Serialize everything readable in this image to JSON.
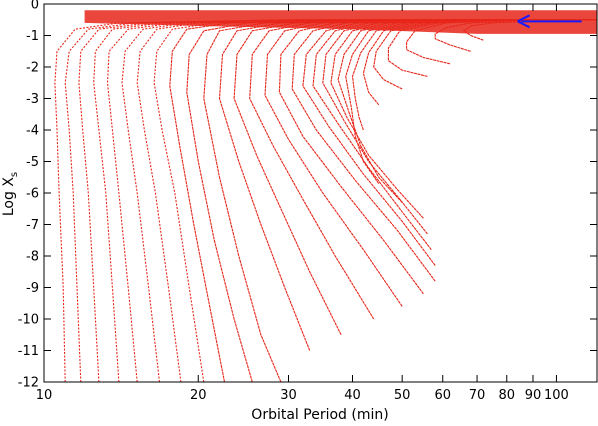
{
  "chart_data": {
    "type": "line",
    "title": "",
    "xlabel": "Orbital Period (min)",
    "ylabel_main": "Log X",
    "ylabel_sub": "s",
    "x_scale": "log",
    "xlim": [
      10,
      120
    ],
    "ylim": [
      -12,
      0
    ],
    "x_ticks": [
      {
        "value": 10,
        "label": "10"
      },
      {
        "value": 20,
        "label": "20"
      },
      {
        "value": 30,
        "label": "30"
      },
      {
        "value": 40,
        "label": "40"
      },
      {
        "value": 50,
        "label": "50"
      },
      {
        "value": 60,
        "label": "60"
      },
      {
        "value": 70,
        "label": "70"
      },
      {
        "value": 80,
        "label": "80"
      },
      {
        "value": 90,
        "label": "90"
      },
      {
        "value": 100,
        "label": "100"
      }
    ],
    "y_ticks": [
      0,
      -1,
      -2,
      -3,
      -4,
      -5,
      -6,
      -7,
      -8,
      -9,
      -10,
      -11,
      -12
    ],
    "grid": false,
    "legend": "none",
    "series_color": "#e8261a",
    "arrow_color": "#1a1aff",
    "arrow": {
      "x_from": 112,
      "x_to": 84,
      "y": -0.55
    },
    "series": [
      {
        "points": [
          [
            11.0,
            -12.0
          ],
          [
            10.9,
            -9.0
          ],
          [
            10.7,
            -6.0
          ],
          [
            10.6,
            -4.0
          ],
          [
            10.5,
            -2.5
          ],
          [
            10.6,
            -1.5
          ],
          [
            11.5,
            -0.8
          ],
          [
            14.0,
            -0.6
          ],
          [
            30.0,
            -0.5
          ],
          [
            120,
            -0.5
          ]
        ]
      },
      {
        "points": [
          [
            11.8,
            -12.0
          ],
          [
            11.6,
            -9.0
          ],
          [
            11.4,
            -6.0
          ],
          [
            11.2,
            -4.0
          ],
          [
            11.0,
            -2.5
          ],
          [
            11.2,
            -1.5
          ],
          [
            12.2,
            -0.8
          ],
          [
            15.0,
            -0.6
          ],
          [
            30.0,
            -0.5
          ],
          [
            120,
            -0.5
          ]
        ]
      },
      {
        "points": [
          [
            12.8,
            -12.0
          ],
          [
            12.5,
            -9.0
          ],
          [
            12.2,
            -6.0
          ],
          [
            11.9,
            -4.0
          ],
          [
            11.7,
            -2.5
          ],
          [
            11.8,
            -1.5
          ],
          [
            12.8,
            -0.8
          ],
          [
            16.0,
            -0.6
          ],
          [
            32.0,
            -0.5
          ],
          [
            120,
            -0.5
          ]
        ]
      },
      {
        "points": [
          [
            14.0,
            -12.0
          ],
          [
            13.6,
            -9.0
          ],
          [
            13.2,
            -6.0
          ],
          [
            12.8,
            -4.0
          ],
          [
            12.5,
            -2.5
          ],
          [
            12.6,
            -1.5
          ],
          [
            13.6,
            -0.8
          ],
          [
            17.0,
            -0.6
          ],
          [
            34.0,
            -0.5
          ],
          [
            120,
            -0.5
          ]
        ]
      },
      {
        "points": [
          [
            15.2,
            -12.0
          ],
          [
            14.6,
            -9.0
          ],
          [
            14.0,
            -6.0
          ],
          [
            13.6,
            -4.0
          ],
          [
            13.3,
            -2.5
          ],
          [
            13.4,
            -1.5
          ],
          [
            14.6,
            -0.8
          ],
          [
            18.0,
            -0.6
          ],
          [
            36.0,
            -0.5
          ],
          [
            120,
            -0.5
          ]
        ]
      },
      {
        "points": [
          [
            16.8,
            -12.0
          ],
          [
            16.0,
            -9.0
          ],
          [
            15.2,
            -6.0
          ],
          [
            14.6,
            -4.0
          ],
          [
            14.2,
            -2.5
          ],
          [
            14.4,
            -1.5
          ],
          [
            15.6,
            -0.8
          ],
          [
            19.0,
            -0.6
          ],
          [
            38.0,
            -0.5
          ],
          [
            120,
            -0.5
          ]
        ]
      },
      {
        "points": [
          [
            18.5,
            -12.0
          ],
          [
            17.5,
            -9.0
          ],
          [
            16.5,
            -6.0
          ],
          [
            15.7,
            -4.0
          ],
          [
            15.2,
            -2.5
          ],
          [
            15.4,
            -1.5
          ],
          [
            16.6,
            -0.8
          ],
          [
            20.0,
            -0.6
          ],
          [
            40.0,
            -0.5
          ],
          [
            120,
            -0.5
          ]
        ]
      },
      {
        "points": [
          [
            20.5,
            -12.0
          ],
          [
            19.2,
            -9.0
          ],
          [
            18.0,
            -6.0
          ],
          [
            17.0,
            -4.0
          ],
          [
            16.4,
            -2.5
          ],
          [
            16.6,
            -1.5
          ],
          [
            17.8,
            -0.8
          ],
          [
            21.5,
            -0.6
          ],
          [
            42.0,
            -0.5
          ],
          [
            120,
            -0.5
          ]
        ]
      },
      {
        "points": [
          [
            22.5,
            -12.0
          ],
          [
            21.0,
            -9.5
          ],
          [
            19.6,
            -7.0
          ],
          [
            18.4,
            -4.5
          ],
          [
            17.6,
            -2.6
          ],
          [
            17.8,
            -1.5
          ],
          [
            19.0,
            -0.8
          ],
          [
            23.0,
            -0.6
          ],
          [
            44.0,
            -0.5
          ],
          [
            120,
            -0.5
          ]
        ]
      },
      {
        "points": [
          [
            25.5,
            -12.0
          ],
          [
            23.5,
            -10.0
          ],
          [
            21.5,
            -7.5
          ],
          [
            20.0,
            -5.0
          ],
          [
            19.0,
            -2.8
          ],
          [
            19.2,
            -1.6
          ],
          [
            20.5,
            -0.85
          ],
          [
            25.0,
            -0.6
          ],
          [
            46.0,
            -0.5
          ],
          [
            120,
            -0.5
          ]
        ]
      },
      {
        "points": [
          [
            29.0,
            -12.0
          ],
          [
            26.5,
            -10.5
          ],
          [
            24.0,
            -8.0
          ],
          [
            22.0,
            -5.5
          ],
          [
            20.5,
            -3.0
          ],
          [
            20.8,
            -1.6
          ],
          [
            22.0,
            -0.85
          ],
          [
            27.0,
            -0.6
          ],
          [
            48.0,
            -0.5
          ],
          [
            120,
            -0.5
          ]
        ]
      },
      {
        "points": [
          [
            33.0,
            -11.0
          ],
          [
            29.5,
            -9.0
          ],
          [
            26.5,
            -7.0
          ],
          [
            24.0,
            -5.0
          ],
          [
            22.0,
            -3.0
          ],
          [
            22.3,
            -1.6
          ],
          [
            23.8,
            -0.85
          ],
          [
            29.0,
            -0.6
          ],
          [
            50.0,
            -0.5
          ],
          [
            120,
            -0.5
          ]
        ]
      },
      {
        "points": [
          [
            38.0,
            -10.5
          ],
          [
            33.0,
            -8.5
          ],
          [
            29.0,
            -6.5
          ],
          [
            26.0,
            -4.8
          ],
          [
            23.5,
            -3.0
          ],
          [
            23.8,
            -1.6
          ],
          [
            25.5,
            -0.85
          ],
          [
            31.0,
            -0.6
          ],
          [
            52.0,
            -0.5
          ],
          [
            120,
            -0.5
          ]
        ]
      },
      {
        "points": [
          [
            44.0,
            -10.0
          ],
          [
            37.0,
            -8.0
          ],
          [
            32.0,
            -6.2
          ],
          [
            28.0,
            -4.5
          ],
          [
            25.2,
            -3.0
          ],
          [
            25.5,
            -1.6
          ],
          [
            27.5,
            -0.85
          ],
          [
            33.0,
            -0.6
          ],
          [
            54.0,
            -0.5
          ],
          [
            120,
            -0.5
          ]
        ]
      },
      {
        "points": [
          [
            50.0,
            -9.6
          ],
          [
            42.0,
            -7.8
          ],
          [
            35.0,
            -6.0
          ],
          [
            30.0,
            -4.3
          ],
          [
            27.0,
            -2.9
          ],
          [
            27.3,
            -1.6
          ],
          [
            29.5,
            -0.85
          ],
          [
            35.0,
            -0.6
          ],
          [
            56.0,
            -0.5
          ],
          [
            120,
            -0.5
          ]
        ]
      },
      {
        "points": [
          [
            55.0,
            -9.2
          ],
          [
            46.0,
            -7.5
          ],
          [
            38.0,
            -5.8
          ],
          [
            32.0,
            -4.2
          ],
          [
            28.8,
            -2.8
          ],
          [
            29.0,
            -1.6
          ],
          [
            31.5,
            -0.85
          ],
          [
            37.0,
            -0.6
          ],
          [
            58.0,
            -0.5
          ],
          [
            120,
            -0.5
          ]
        ]
      },
      {
        "points": [
          [
            58.0,
            -8.8
          ],
          [
            49.0,
            -7.2
          ],
          [
            40.5,
            -5.6
          ],
          [
            34.0,
            -4.0
          ],
          [
            30.5,
            -2.7
          ],
          [
            30.8,
            -1.6
          ],
          [
            33.5,
            -0.85
          ],
          [
            39.0,
            -0.6
          ],
          [
            60.0,
            -0.5
          ],
          [
            120,
            -0.5
          ]
        ]
      },
      {
        "points": [
          [
            58.0,
            -8.3
          ],
          [
            50.0,
            -6.9
          ],
          [
            42.0,
            -5.4
          ],
          [
            36.0,
            -3.9
          ],
          [
            32.0,
            -2.6
          ],
          [
            32.5,
            -1.6
          ],
          [
            35.5,
            -0.85
          ],
          [
            41.0,
            -0.6
          ],
          [
            62.0,
            -0.5
          ],
          [
            120,
            -0.5
          ]
        ]
      },
      {
        "points": [
          [
            57.0,
            -7.8
          ],
          [
            50.0,
            -6.6
          ],
          [
            43.0,
            -5.2
          ],
          [
            37.5,
            -3.8
          ],
          [
            33.5,
            -2.6
          ],
          [
            34.0,
            -1.6
          ],
          [
            37.0,
            -0.85
          ],
          [
            43.0,
            -0.6
          ],
          [
            64.0,
            -0.5
          ],
          [
            120,
            -0.5
          ]
        ]
      },
      {
        "points": [
          [
            56.0,
            -7.3
          ],
          [
            49.5,
            -6.2
          ],
          [
            43.0,
            -5.0
          ],
          [
            38.5,
            -3.7
          ],
          [
            35.0,
            -2.5
          ],
          [
            35.5,
            -1.6
          ],
          [
            38.5,
            -0.85
          ],
          [
            45.0,
            -0.6
          ],
          [
            66.0,
            -0.5
          ],
          [
            120,
            -0.5
          ]
        ]
      },
      {
        "points": [
          [
            55.0,
            -6.8
          ],
          [
            49.0,
            -5.9
          ],
          [
            43.0,
            -4.8
          ],
          [
            39.0,
            -3.6
          ],
          [
            36.3,
            -2.5
          ],
          [
            37.0,
            -1.6
          ],
          [
            40.0,
            -0.85
          ],
          [
            47.0,
            -0.6
          ],
          [
            68.0,
            -0.5
          ],
          [
            120,
            -0.5
          ]
        ]
      },
      {
        "points": [
          [
            50.0,
            -6.3
          ],
          [
            45.0,
            -5.5
          ],
          [
            41.5,
            -4.5
          ],
          [
            39.5,
            -3.5
          ],
          [
            37.5,
            -2.4
          ],
          [
            38.5,
            -1.6
          ],
          [
            41.5,
            -0.85
          ],
          [
            49.0,
            -0.6
          ],
          [
            70.0,
            -0.5
          ],
          [
            120,
            -0.5
          ]
        ]
      },
      {
        "points": [
          [
            45.0,
            -5.7
          ],
          [
            42.0,
            -5.0
          ],
          [
            40.5,
            -4.2
          ],
          [
            39.8,
            -3.3
          ],
          [
            38.8,
            -2.3
          ],
          [
            40.0,
            -1.6
          ],
          [
            43.0,
            -0.85
          ],
          [
            51.0,
            -0.6
          ],
          [
            72.0,
            -0.5
          ],
          [
            120,
            -0.5
          ]
        ]
      },
      {
        "points": [
          [
            42.0,
            -4.0
          ],
          [
            41.2,
            -3.6
          ],
          [
            40.5,
            -3.0
          ],
          [
            40.0,
            -2.3
          ],
          [
            41.5,
            -1.55
          ],
          [
            44.5,
            -0.85
          ],
          [
            53.0,
            -0.6
          ],
          [
            74.0,
            -0.5
          ],
          [
            120,
            -0.5
          ]
        ]
      },
      {
        "points": [
          [
            45.0,
            -3.2
          ],
          [
            43.0,
            -2.8
          ],
          [
            42.0,
            -2.2
          ],
          [
            43.0,
            -1.55
          ],
          [
            46.0,
            -0.85
          ],
          [
            55.0,
            -0.6
          ],
          [
            76.0,
            -0.5
          ],
          [
            120,
            -0.5
          ]
        ]
      },
      {
        "points": [
          [
            50.0,
            -2.7
          ],
          [
            46.0,
            -2.4
          ],
          [
            44.0,
            -2.0
          ],
          [
            44.5,
            -1.5
          ],
          [
            47.5,
            -0.85
          ],
          [
            57.0,
            -0.6
          ],
          [
            78.0,
            -0.5
          ],
          [
            120,
            -0.5
          ]
        ]
      },
      {
        "points": [
          [
            56.0,
            -2.3
          ],
          [
            50.0,
            -2.1
          ],
          [
            47.0,
            -1.8
          ],
          [
            47.0,
            -1.4
          ],
          [
            49.5,
            -0.85
          ],
          [
            59.0,
            -0.6
          ],
          [
            80.0,
            -0.5
          ],
          [
            120,
            -0.5
          ]
        ]
      },
      {
        "points": [
          [
            62.0,
            -1.9
          ],
          [
            55.0,
            -1.7
          ],
          [
            51.0,
            -1.45
          ],
          [
            51.0,
            -1.2
          ],
          [
            53.0,
            -0.85
          ],
          [
            61.0,
            -0.6
          ],
          [
            82.0,
            -0.5
          ],
          [
            120,
            -0.5
          ]
        ]
      },
      {
        "points": [
          [
            68.0,
            -1.5
          ],
          [
            62.0,
            -1.3
          ],
          [
            58.0,
            -1.1
          ],
          [
            58.0,
            -0.95
          ],
          [
            61.0,
            -0.75
          ],
          [
            68.0,
            -0.6
          ],
          [
            90.0,
            -0.5
          ],
          [
            120,
            -0.5
          ]
        ]
      },
      {
        "points": [
          [
            72.0,
            -1.15
          ],
          [
            68.0,
            -1.0
          ],
          [
            66.0,
            -0.85
          ],
          [
            68.0,
            -0.7
          ],
          [
            75.0,
            -0.6
          ],
          [
            100.0,
            -0.5
          ],
          [
            120,
            -0.5
          ]
        ]
      }
    ]
  }
}
